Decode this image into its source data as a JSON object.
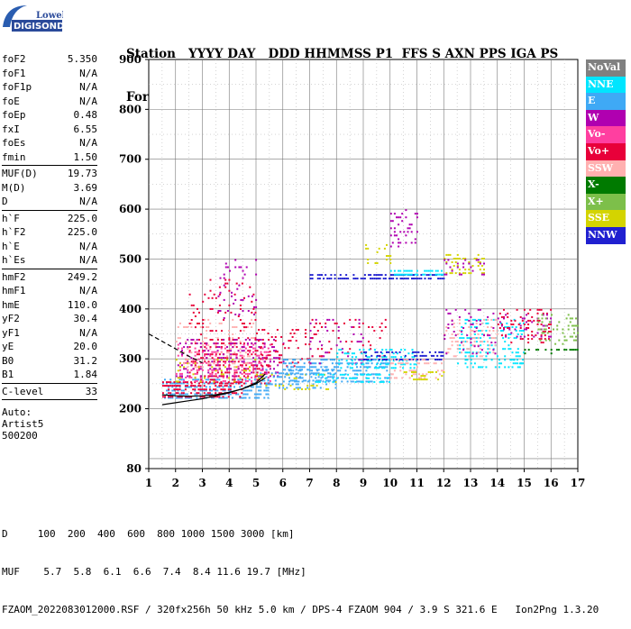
{
  "logo": {
    "line1": "Lowell",
    "line2": "DIGISONDE"
  },
  "header": {
    "line1": "Station   YYYY DAY   DDD HHMMSS P1  FFS S AXN PPS IGA PS",
    "line2": "Fortaleza 2022 Mar24 083 012000 RSF     1 714 100 10+ 11"
  },
  "params_groups": [
    [
      {
        "label": "foF2",
        "value": "5.350"
      },
      {
        "label": "foF1",
        "value": "N/A"
      },
      {
        "label": "foF1p",
        "value": "N/A"
      },
      {
        "label": "foE",
        "value": "N/A"
      },
      {
        "label": "foEp",
        "value": "0.48"
      },
      {
        "label": "fxI",
        "value": "6.55"
      },
      {
        "label": "foEs",
        "value": "N/A"
      },
      {
        "label": "fmin",
        "value": "1.50"
      }
    ],
    [
      {
        "label": "MUF(D)",
        "value": "19.73"
      },
      {
        "label": "M(D)",
        "value": "3.69"
      },
      {
        "label": "D",
        "value": "N/A"
      }
    ],
    [
      {
        "label": "h`F",
        "value": "225.0"
      },
      {
        "label": "h`F2",
        "value": "225.0"
      },
      {
        "label": "h`E",
        "value": "N/A"
      },
      {
        "label": "h`Es",
        "value": "N/A"
      }
    ],
    [
      {
        "label": "hmF2",
        "value": "249.2"
      },
      {
        "label": "hmF1",
        "value": "N/A"
      },
      {
        "label": "hmE",
        "value": "110.0"
      },
      {
        "label": "yF2",
        "value": "30.4"
      },
      {
        "label": "yF1",
        "value": "N/A"
      },
      {
        "label": "yE",
        "value": "20.0"
      },
      {
        "label": "B0",
        "value": "31.2"
      },
      {
        "label": "B1",
        "value": "1.84"
      }
    ],
    [
      {
        "label": "C-level",
        "value": "33"
      }
    ]
  ],
  "auto": {
    "line1": "Auto:",
    "line2": "Artist5",
    "line3": "500200"
  },
  "legend": [
    {
      "label": "NoVal",
      "color": "#808080"
    },
    {
      "label": "NNE",
      "color": "#00e5ff"
    },
    {
      "label": "E",
      "color": "#3fa9f5"
    },
    {
      "label": "W",
      "color": "#b000b0"
    },
    {
      "label": "Vo-",
      "color": "#ff3fa0"
    },
    {
      "label": "Vo+",
      "color": "#e8003a"
    },
    {
      "label": "SSW",
      "color": "#ffb0b0"
    },
    {
      "label": "X-",
      "color": "#007a00"
    },
    {
      "label": "X+",
      "color": "#7dbf4a"
    },
    {
      "label": "SSE",
      "color": "#d4d400"
    },
    {
      "label": "NNW",
      "color": "#2020d0"
    }
  ],
  "footer": {
    "line1": "D     100  200  400  600  800 1000 1500 3000 [km]",
    "line2": "MUF    5.7  5.8  6.1  6.6  7.4  8.4 11.6 19.7 [MHz]",
    "line3": "FZAOM_2022083012000.RSF / 320fx256h 50 kHz 5.0 km / DPS-4 FZAOM 904 / 3.9 S 321.6 E   Ion2Png 1.3.20"
  },
  "chart_data": {
    "type": "scatter",
    "xlim": [
      1,
      17
    ],
    "ylim": [
      80,
      900
    ],
    "xticks": [
      1,
      2,
      3,
      4,
      5,
      6,
      7,
      8,
      9,
      10,
      11,
      12,
      13,
      14,
      15,
      16,
      17
    ],
    "yticks": [
      80,
      200,
      300,
      400,
      500,
      600,
      700,
      800,
      900
    ],
    "grid": true,
    "legend_position": "right",
    "clusters": [
      {
        "x": [
          1.5,
          5.5
        ],
        "y": [
          220,
          260
        ],
        "color": "E",
        "density": 0.55
      },
      {
        "x": [
          1.5,
          4.5
        ],
        "y": [
          225,
          255
        ],
        "color": "Vo+",
        "density": 0.5
      },
      {
        "x": [
          2.5,
          5.5
        ],
        "y": [
          250,
          340
        ],
        "color": "Vo+",
        "density": 0.35
      },
      {
        "x": [
          2,
          5.5
        ],
        "y": [
          250,
          330
        ],
        "color": "Vo-",
        "density": 0.25
      },
      {
        "x": [
          2,
          6
        ],
        "y": [
          260,
          340
        ],
        "color": "W",
        "density": 0.2
      },
      {
        "x": [
          2,
          5
        ],
        "y": [
          250,
          300
        ],
        "color": "SSE",
        "density": 0.15
      },
      {
        "x": [
          2,
          5
        ],
        "y": [
          280,
          380
        ],
        "color": "SSW",
        "density": 0.15
      },
      {
        "x": [
          2.5,
          5
        ],
        "y": [
          340,
          460
        ],
        "color": "Vo+",
        "density": 0.12
      },
      {
        "x": [
          3.5,
          5
        ],
        "y": [
          370,
          500
        ],
        "color": "W",
        "density": 0.1
      },
      {
        "x": [
          5,
          7
        ],
        "y": [
          280,
          360
        ],
        "color": "Vo+",
        "density": 0.18
      },
      {
        "x": [
          5,
          8
        ],
        "y": [
          240,
          280
        ],
        "color": "E",
        "density": 0.4
      },
      {
        "x": [
          5,
          8
        ],
        "y": [
          240,
          270
        ],
        "color": "SSE",
        "density": 0.15
      },
      {
        "x": [
          6,
          10
        ],
        "y": [
          255,
          300
        ],
        "color": "E",
        "density": 0.45
      },
      {
        "x": [
          7,
          10
        ],
        "y": [
          250,
          270
        ],
        "color": "NNE",
        "density": 0.3
      },
      {
        "x": [
          7,
          9
        ],
        "y": [
          290,
          380
        ],
        "color": "W",
        "density": 0.12
      },
      {
        "x": [
          7,
          10
        ],
        "y": [
          300,
          380
        ],
        "color": "Vo+",
        "density": 0.1
      },
      {
        "x": [
          8,
          11
        ],
        "y": [
          280,
          320
        ],
        "color": "NNE",
        "density": 0.3
      },
      {
        "x": [
          9,
          12
        ],
        "y": [
          300,
          315
        ],
        "color": "NNW",
        "density": 0.5
      },
      {
        "x": [
          10,
          12
        ],
        "y": [
          260,
          300
        ],
        "color": "SSW",
        "density": 0.3
      },
      {
        "x": [
          10.5,
          12
        ],
        "y": [
          255,
          275
        ],
        "color": "SSE",
        "density": 0.4
      },
      {
        "x": [
          7,
          12
        ],
        "y": [
          462,
          470
        ],
        "color": "NNW",
        "density": 0.55
      },
      {
        "x": [
          10,
          12
        ],
        "y": [
          470,
          478
        ],
        "color": "NNE",
        "density": 0.6
      },
      {
        "x": [
          10,
          11
        ],
        "y": [
          520,
          600
        ],
        "color": "W",
        "density": 0.3
      },
      {
        "x": [
          9,
          10
        ],
        "y": [
          490,
          530
        ],
        "color": "SSE",
        "density": 0.25
      },
      {
        "x": [
          12,
          13.5
        ],
        "y": [
          470,
          510
        ],
        "color": "SSE",
        "density": 0.35
      },
      {
        "x": [
          12,
          13.5
        ],
        "y": [
          470,
          500
        ],
        "color": "W",
        "density": 0.25
      },
      {
        "x": [
          12.5,
          15
        ],
        "y": [
          280,
          380
        ],
        "color": "NNE",
        "density": 0.3
      },
      {
        "x": [
          12,
          14
        ],
        "y": [
          300,
          380
        ],
        "color": "SSW",
        "density": 0.2
      },
      {
        "x": [
          12,
          14
        ],
        "y": [
          310,
          400
        ],
        "color": "W",
        "density": 0.15
      },
      {
        "x": [
          14,
          16
        ],
        "y": [
          330,
          400
        ],
        "color": "Vo+",
        "density": 0.2
      },
      {
        "x": [
          14,
          16
        ],
        "y": [
          340,
          390
        ],
        "color": "W",
        "density": 0.2
      },
      {
        "x": [
          15.5,
          17
        ],
        "y": [
          330,
          390
        ],
        "color": "X+",
        "density": 0.25
      },
      {
        "x": [
          14.5,
          15
        ],
        "y": [
          290,
          300
        ],
        "color": "NNE",
        "density": 0.4
      },
      {
        "x": [
          15,
          17
        ],
        "y": [
          310,
          320
        ],
        "color": "X-",
        "density": 0.3
      }
    ],
    "profile_curves": [
      {
        "style": "solid",
        "x": [
          1.5,
          2,
          2.5,
          3,
          3.5,
          4,
          4.5,
          5,
          5.35
        ],
        "y": [
          208,
          212,
          216,
          220,
          226,
          232,
          240,
          252,
          270
        ]
      },
      {
        "style": "solid",
        "x": [
          1.5,
          2,
          2.5,
          3,
          3.5,
          4,
          4.5,
          5,
          5.35
        ],
        "y": [
          228,
          226,
          225,
          226,
          228,
          233,
          240,
          250,
          262
        ]
      },
      {
        "style": "dashed",
        "x": [
          1.0,
          1.5,
          2.0,
          2.5,
          3.0
        ],
        "y": [
          350,
          335,
          320,
          305,
          292
        ]
      }
    ]
  }
}
